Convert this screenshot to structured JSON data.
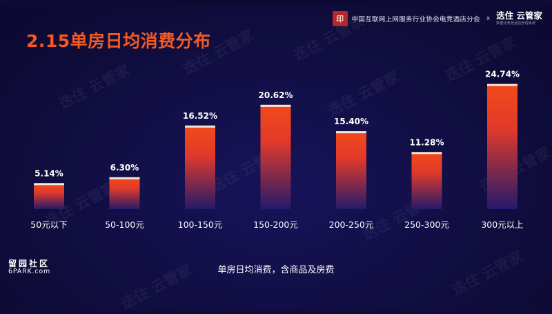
{
  "header": {
    "title": "2.15单房日均消费分布",
    "seal_text": "印",
    "association": "中国互联网上网服务行业协会电竞酒店分会",
    "cross": "x",
    "brand": "迭住 云管家",
    "brand_sub": "数据化电竞酒店管理系统"
  },
  "watermark": {
    "text": "迭住 云管家"
  },
  "caption": "单房日均消费，含商品及房费",
  "site_logo": {
    "line1": "留园社区",
    "line2": "6PARK.com"
  },
  "colors": {
    "background": "#0f0c3a",
    "title": "#f25a22",
    "bar_top": "#f24a1a",
    "bar_bottom": "#241a6a",
    "bar_cap": "#f3e7d8"
  },
  "chart_data": {
    "type": "bar",
    "title": "",
    "xlabel": "",
    "ylabel": "",
    "ylim": [
      0,
      27
    ],
    "grid": false,
    "categories": [
      "50元以下",
      "50-100元",
      "100-150元",
      "150-200元",
      "200-250元",
      "250-300元",
      "300元以上"
    ],
    "values": [
      5.14,
      6.3,
      16.52,
      20.62,
      15.4,
      11.28,
      24.74
    ],
    "value_labels": [
      "5.14%",
      "6.30%",
      "16.52%",
      "20.62%",
      "15.40%",
      "11.28%",
      "24.74%"
    ]
  }
}
